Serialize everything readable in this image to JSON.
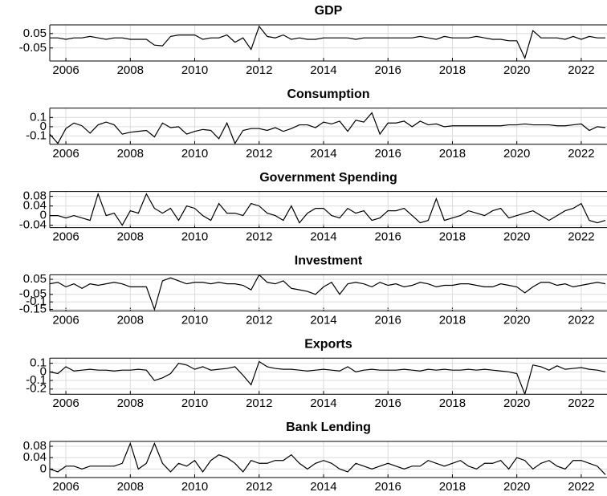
{
  "chart_data": [
    {
      "type": "line",
      "title": "GDP",
      "color": "#000000",
      "grid": true,
      "x": [
        2005.5,
        2005.75,
        2006,
        2006.25,
        2006.5,
        2006.75,
        2007,
        2007.25,
        2007.5,
        2007.75,
        2008,
        2008.25,
        2008.5,
        2008.75,
        2009,
        2009.25,
        2009.5,
        2009.75,
        2010,
        2010.25,
        2010.5,
        2010.75,
        2011,
        2011.25,
        2011.5,
        2011.75,
        2012,
        2012.25,
        2012.5,
        2012.75,
        2013,
        2013.25,
        2013.5,
        2013.75,
        2014,
        2014.25,
        2014.5,
        2014.75,
        2015,
        2015.25,
        2015.5,
        2015.75,
        2016,
        2016.25,
        2016.5,
        2016.75,
        2017,
        2017.25,
        2017.5,
        2017.75,
        2018,
        2018.25,
        2018.5,
        2018.75,
        2019,
        2019.25,
        2019.5,
        2019.75,
        2020,
        2020.25,
        2020.5,
        2020.75,
        2021,
        2021.25,
        2021.5,
        2021.75,
        2022,
        2022.25,
        2022.5,
        2022.75
      ],
      "values": [
        0.02,
        0.02,
        0.01,
        0.02,
        0.02,
        0.03,
        0.02,
        0.01,
        0.02,
        0.02,
        0.01,
        0.01,
        0.01,
        -0.03,
        -0.035,
        0.03,
        0.04,
        0.04,
        0.04,
        0.01,
        0.02,
        0.02,
        0.04,
        -0.01,
        0.02,
        -0.06,
        0.1,
        0.03,
        0.02,
        0.04,
        0.01,
        0.02,
        0.01,
        0.01,
        0.02,
        0.02,
        0.02,
        0.02,
        0.01,
        0.02,
        0.02,
        0.02,
        0.02,
        0.02,
        0.02,
        0.02,
        0.03,
        0.02,
        0.01,
        0.03,
        0.02,
        0.02,
        0.02,
        0.03,
        0.02,
        0.01,
        0.01,
        0.0,
        0.0,
        -0.12,
        0.07,
        0.02,
        0.02,
        0.02,
        0.01,
        0.03,
        0.01,
        0.03,
        0.02,
        0.02
      ],
      "xlim": [
        2005.5,
        2022.8
      ],
      "xticks": [
        2006,
        2008,
        2010,
        2012,
        2014,
        2016,
        2018,
        2020,
        2022
      ],
      "ylim": [
        -0.14,
        0.11
      ],
      "yticks": [
        -0.05,
        0.05
      ]
    },
    {
      "type": "line",
      "title": "Consumption",
      "color": "#000000",
      "grid": true,
      "x": [
        2005.5,
        2005.75,
        2006,
        2006.25,
        2006.5,
        2006.75,
        2007,
        2007.25,
        2007.5,
        2007.75,
        2008,
        2008.25,
        2008.5,
        2008.75,
        2009,
        2009.25,
        2009.5,
        2009.75,
        2010,
        2010.25,
        2010.5,
        2010.75,
        2011,
        2011.25,
        2011.5,
        2011.75,
        2012,
        2012.25,
        2012.5,
        2012.75,
        2013,
        2013.25,
        2013.5,
        2013.75,
        2014,
        2014.25,
        2014.5,
        2014.75,
        2015,
        2015.25,
        2015.5,
        2015.75,
        2016,
        2016.25,
        2016.5,
        2016.75,
        2017,
        2017.25,
        2017.5,
        2017.75,
        2018,
        2018.25,
        2018.5,
        2018.75,
        2019,
        2019.25,
        2019.5,
        2019.75,
        2020,
        2020.25,
        2020.5,
        2020.75,
        2021,
        2021.25,
        2021.5,
        2021.75,
        2022,
        2022.25,
        2022.5,
        2022.75
      ],
      "values": [
        -0.08,
        -0.18,
        -0.02,
        0.04,
        0.01,
        -0.07,
        0.02,
        0.05,
        0.02,
        -0.08,
        -0.06,
        -0.05,
        -0.04,
        -0.11,
        0.04,
        -0.01,
        0.0,
        -0.08,
        -0.05,
        -0.03,
        -0.04,
        -0.13,
        0.04,
        -0.18,
        -0.04,
        -0.02,
        -0.02,
        -0.04,
        -0.01,
        -0.05,
        -0.02,
        0.02,
        0.02,
        -0.01,
        0.05,
        0.03,
        0.06,
        -0.05,
        0.07,
        0.05,
        0.15,
        -0.08,
        0.04,
        0.04,
        0.06,
        0.0,
        0.06,
        0.02,
        0.03,
        0.0,
        0.01,
        0.01,
        0.01,
        0.01,
        0.01,
        0.01,
        0.01,
        0.02,
        0.02,
        0.03,
        0.02,
        0.02,
        0.02,
        0.01,
        0.01,
        0.02,
        0.03,
        -0.04,
        0.0,
        -0.01
      ],
      "xlim": [
        2005.5,
        2022.8
      ],
      "xticks": [
        2006,
        2008,
        2010,
        2012,
        2014,
        2016,
        2018,
        2020,
        2022
      ],
      "ylim": [
        -0.19,
        0.2
      ],
      "yticks": [
        -0.1,
        0,
        0.1
      ]
    },
    {
      "type": "line",
      "title": "Government Spending",
      "color": "#000000",
      "grid": true,
      "x": [
        2005.5,
        2005.75,
        2006,
        2006.25,
        2006.5,
        2006.75,
        2007,
        2007.25,
        2007.5,
        2007.75,
        2008,
        2008.25,
        2008.5,
        2008.75,
        2009,
        2009.25,
        2009.5,
        2009.75,
        2010,
        2010.25,
        2010.5,
        2010.75,
        2011,
        2011.25,
        2011.5,
        2011.75,
        2012,
        2012.25,
        2012.5,
        2012.75,
        2013,
        2013.25,
        2013.5,
        2013.75,
        2014,
        2014.25,
        2014.5,
        2014.75,
        2015,
        2015.25,
        2015.5,
        2015.75,
        2016,
        2016.25,
        2016.5,
        2016.75,
        2017,
        2017.25,
        2017.5,
        2017.75,
        2018,
        2018.25,
        2018.5,
        2018.75,
        2019,
        2019.25,
        2019.5,
        2019.75,
        2020,
        2020.25,
        2020.5,
        2020.75,
        2021,
        2021.25,
        2021.5,
        2021.75,
        2022,
        2022.25,
        2022.5,
        2022.75
      ],
      "values": [
        0.0,
        0.0,
        -0.01,
        0.0,
        -0.01,
        -0.02,
        0.09,
        0.0,
        0.01,
        -0.04,
        0.02,
        0.01,
        0.09,
        0.03,
        0.01,
        0.03,
        -0.02,
        0.04,
        0.03,
        0.0,
        -0.02,
        0.05,
        0.01,
        0.01,
        0.0,
        0.05,
        0.04,
        0.01,
        0.0,
        -0.02,
        0.04,
        -0.03,
        0.01,
        0.03,
        0.03,
        0.0,
        -0.01,
        0.03,
        0.01,
        0.02,
        -0.02,
        -0.01,
        0.02,
        0.02,
        0.03,
        0.0,
        -0.03,
        -0.02,
        0.07,
        -0.02,
        -0.01,
        0.0,
        0.02,
        0.01,
        0.0,
        0.02,
        0.03,
        -0.01,
        0.0,
        0.01,
        0.02,
        0.0,
        -0.02,
        0.0,
        0.02,
        0.03,
        0.05,
        -0.02,
        -0.03,
        -0.02
      ],
      "xlim": [
        2005.5,
        2022.8
      ],
      "xticks": [
        2006,
        2008,
        2010,
        2012,
        2014,
        2016,
        2018,
        2020,
        2022
      ],
      "ylim": [
        -0.05,
        0.1
      ],
      "yticks": [
        -0.04,
        0,
        0.04,
        0.08
      ]
    },
    {
      "type": "line",
      "title": "Investment",
      "color": "#000000",
      "grid": true,
      "x": [
        2005.5,
        2005.75,
        2006,
        2006.25,
        2006.5,
        2006.75,
        2007,
        2007.25,
        2007.5,
        2007.75,
        2008,
        2008.25,
        2008.5,
        2008.75,
        2009,
        2009.25,
        2009.5,
        2009.75,
        2010,
        2010.25,
        2010.5,
        2010.75,
        2011,
        2011.25,
        2011.5,
        2011.75,
        2012,
        2012.25,
        2012.5,
        2012.75,
        2013,
        2013.25,
        2013.5,
        2013.75,
        2014,
        2014.25,
        2014.5,
        2014.75,
        2015,
        2015.25,
        2015.5,
        2015.75,
        2016,
        2016.25,
        2016.5,
        2016.75,
        2017,
        2017.25,
        2017.5,
        2017.75,
        2018,
        2018.25,
        2018.5,
        2018.75,
        2019,
        2019.25,
        2019.5,
        2019.75,
        2020,
        2020.25,
        2020.5,
        2020.75,
        2021,
        2021.25,
        2021.5,
        2021.75,
        2022,
        2022.25,
        2022.5,
        2022.75
      ],
      "values": [
        0.02,
        0.03,
        0.0,
        0.02,
        -0.01,
        0.02,
        0.01,
        0.02,
        0.03,
        0.02,
        0.0,
        0.0,
        0.0,
        -0.15,
        0.04,
        0.06,
        0.04,
        0.02,
        0.03,
        0.03,
        0.02,
        0.03,
        0.02,
        0.02,
        0.01,
        -0.02,
        0.08,
        0.03,
        0.02,
        0.04,
        -0.01,
        -0.02,
        -0.03,
        -0.05,
        0.0,
        0.03,
        -0.05,
        0.02,
        0.03,
        0.02,
        0.0,
        0.03,
        0.01,
        0.02,
        0.0,
        0.01,
        0.03,
        0.02,
        0.0,
        0.01,
        0.01,
        0.02,
        0.02,
        0.01,
        0.0,
        0.0,
        0.02,
        0.01,
        0.0,
        -0.04,
        0.0,
        0.03,
        0.03,
        0.01,
        0.02,
        0.0,
        0.01,
        0.02,
        0.03,
        0.02
      ],
      "xlim": [
        2005.5,
        2022.8
      ],
      "xticks": [
        2006,
        2008,
        2010,
        2012,
        2014,
        2016,
        2018,
        2020,
        2022
      ],
      "ylim": [
        -0.16,
        0.08
      ],
      "yticks": [
        -0.15,
        -0.1,
        -0.05,
        0.05
      ]
    },
    {
      "type": "line",
      "title": "Exports",
      "color": "#000000",
      "grid": true,
      "x": [
        2005.5,
        2005.75,
        2006,
        2006.25,
        2006.5,
        2006.75,
        2007,
        2007.25,
        2007.5,
        2007.75,
        2008,
        2008.25,
        2008.5,
        2008.75,
        2009,
        2009.25,
        2009.5,
        2009.75,
        2010,
        2010.25,
        2010.5,
        2010.75,
        2011,
        2011.25,
        2011.5,
        2011.75,
        2012,
        2012.25,
        2012.5,
        2012.75,
        2013,
        2013.25,
        2013.5,
        2013.75,
        2014,
        2014.25,
        2014.5,
        2014.75,
        2015,
        2015.25,
        2015.5,
        2015.75,
        2016,
        2016.25,
        2016.5,
        2016.75,
        2017,
        2017.25,
        2017.5,
        2017.75,
        2018,
        2018.25,
        2018.5,
        2018.75,
        2019,
        2019.25,
        2019.5,
        2019.75,
        2020,
        2020.25,
        2020.5,
        2020.75,
        2021,
        2021.25,
        2021.5,
        2021.75,
        2022,
        2022.25,
        2022.5,
        2022.75
      ],
      "values": [
        0.0,
        -0.02,
        0.06,
        0.01,
        0.02,
        0.03,
        0.02,
        0.02,
        0.01,
        0.02,
        0.02,
        0.03,
        0.02,
        -0.1,
        -0.07,
        -0.02,
        0.1,
        0.08,
        0.03,
        0.06,
        0.02,
        0.03,
        0.04,
        0.06,
        -0.04,
        -0.15,
        0.12,
        0.06,
        0.04,
        0.03,
        0.03,
        0.02,
        0.01,
        0.02,
        0.03,
        0.02,
        0.01,
        0.06,
        0.0,
        0.02,
        0.03,
        0.02,
        0.02,
        0.02,
        0.03,
        0.02,
        0.01,
        0.03,
        0.02,
        0.03,
        0.02,
        0.02,
        0.03,
        0.02,
        0.03,
        0.02,
        0.01,
        0.0,
        -0.02,
        -0.26,
        0.08,
        0.06,
        0.02,
        0.07,
        0.03,
        0.04,
        0.05,
        0.03,
        0.02,
        0.0
      ],
      "xlim": [
        2005.5,
        2022.8
      ],
      "xticks": [
        2006,
        2008,
        2010,
        2012,
        2014,
        2016,
        2018,
        2020,
        2022
      ],
      "ylim": [
        -0.26,
        0.16
      ],
      "yticks": [
        -0.2,
        -0.1,
        0,
        0.1
      ]
    },
    {
      "type": "line",
      "title": "Bank Lending",
      "color": "#000000",
      "grid": true,
      "x": [
        2005.5,
        2005.75,
        2006,
        2006.25,
        2006.5,
        2006.75,
        2007,
        2007.25,
        2007.5,
        2007.75,
        2008,
        2008.25,
        2008.5,
        2008.75,
        2009,
        2009.25,
        2009.5,
        2009.75,
        2010,
        2010.25,
        2010.5,
        2010.75,
        2011,
        2011.25,
        2011.5,
        2011.75,
        2012,
        2012.25,
        2012.5,
        2012.75,
        2013,
        2013.25,
        2013.5,
        2013.75,
        2014,
        2014.25,
        2014.5,
        2014.75,
        2015,
        2015.25,
        2015.5,
        2015.75,
        2016,
        2016.25,
        2016.5,
        2016.75,
        2017,
        2017.25,
        2017.5,
        2017.75,
        2018,
        2018.25,
        2018.5,
        2018.75,
        2019,
        2019.25,
        2019.5,
        2019.75,
        2020,
        2020.25,
        2020.5,
        2020.75,
        2021,
        2021.25,
        2021.5,
        2021.75,
        2022,
        2022.25,
        2022.5,
        2022.75
      ],
      "values": [
        0.0,
        -0.01,
        0.01,
        0.01,
        0.0,
        0.01,
        0.01,
        0.01,
        0.01,
        0.02,
        0.09,
        0.0,
        0.02,
        0.09,
        0.02,
        -0.01,
        0.02,
        0.01,
        0.03,
        -0.01,
        0.03,
        0.05,
        0.04,
        0.02,
        -0.01,
        0.03,
        0.02,
        0.02,
        0.03,
        0.03,
        0.05,
        0.02,
        0.0,
        0.02,
        0.03,
        0.02,
        0.0,
        -0.01,
        0.02,
        0.01,
        0.0,
        0.01,
        0.02,
        0.01,
        0.0,
        0.01,
        0.01,
        0.03,
        0.02,
        0.01,
        0.02,
        0.03,
        0.01,
        0.0,
        0.02,
        0.02,
        0.03,
        0.0,
        0.04,
        0.03,
        0.0,
        0.02,
        0.03,
        0.01,
        0.0,
        0.03,
        0.03,
        0.02,
        0.01,
        -0.02
      ],
      "xlim": [
        2005.5,
        2022.8
      ],
      "xticks": [
        2006,
        2008,
        2010,
        2012,
        2014,
        2016,
        2018,
        2020,
        2022
      ],
      "ylim": [
        -0.03,
        0.097
      ],
      "yticks": [
        0,
        0.04,
        0.08
      ]
    }
  ]
}
